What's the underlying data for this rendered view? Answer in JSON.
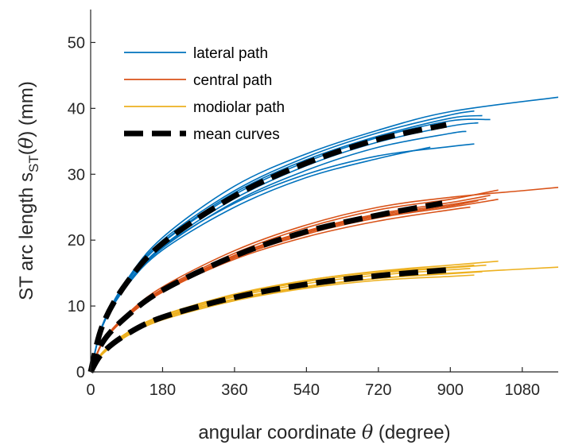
{
  "chart_data": {
    "type": "line",
    "xlabel": {
      "prefix": "angular coordinate ",
      "symbol": "θ",
      "suffix": " (degree)"
    },
    "ylabel": {
      "prefix": "ST arc length s",
      "subscript": "ST",
      "symbol_open": "(",
      "symbol": "θ",
      "suffix": ") (mm)"
    },
    "xlim": [
      0,
      1170
    ],
    "ylim": [
      0,
      55
    ],
    "xticks": [
      0,
      180,
      360,
      540,
      720,
      900,
      1080
    ],
    "yticks": [
      0,
      10,
      20,
      30,
      40,
      50
    ],
    "legend_position": "top-left",
    "legend": [
      {
        "label": "lateral path",
        "color": "#0072BD",
        "style": "solid"
      },
      {
        "label": "central path",
        "color": "#D95319",
        "style": "solid"
      },
      {
        "label": "modiolar path",
        "color": "#EDB120",
        "style": "solid"
      },
      {
        "label": "mean curves",
        "color": "#000000",
        "style": "dashed"
      }
    ],
    "groups": [
      {
        "name": "lateral path",
        "color": "#0072BD",
        "curves": [
          {
            "x": [
              0,
              30,
              90,
              180,
              360,
              540,
              720,
              900,
              1170
            ],
            "y": [
              0,
              7.1,
              13.9,
              20.4,
              28.2,
              33.1,
              36.7,
              39.5,
              41.7
            ]
          },
          {
            "x": [
              0,
              30,
              90,
              180,
              360,
              540,
              720,
              900,
              1000
            ],
            "y": [
              0,
              7.2,
              13.6,
              19.6,
              26.9,
              31.9,
              35.6,
              38.1,
              38.3
            ]
          },
          {
            "x": [
              0,
              30,
              90,
              180,
              360,
              540,
              720,
              900,
              980
            ],
            "y": [
              0,
              7.1,
              13.6,
              19.7,
              27.2,
              32.2,
              35.8,
              38.5,
              38.9
            ]
          },
          {
            "x": [
              0,
              30,
              90,
              180,
              360,
              540,
              720,
              900,
              960
            ],
            "y": [
              0,
              7.2,
              13.8,
              20.0,
              27.5,
              32.6,
              36.3,
              39.0,
              39.6
            ]
          },
          {
            "x": [
              0,
              30,
              90,
              180,
              360,
              540,
              720,
              900,
              970
            ],
            "y": [
              0,
              7.0,
              13.2,
              19.1,
              26.3,
              31.3,
              34.9,
              37.3,
              37.8
            ]
          },
          {
            "x": [
              0,
              30,
              90,
              180,
              360,
              540,
              720,
              900,
              940
            ],
            "y": [
              0,
              7.0,
              13.1,
              18.8,
              25.8,
              30.6,
              34.1,
              36.2,
              36.5
            ]
          },
          {
            "x": [
              0,
              30,
              90,
              180,
              360,
              540,
              720,
              900,
              960
            ],
            "y": [
              0,
              7.1,
              13.3,
              19.0,
              25.6,
              30.0,
              32.8,
              34.2,
              34.6
            ]
          },
          {
            "x": [
              0,
              30,
              90,
              180,
              360,
              540,
              720,
              850
            ],
            "y": [
              0,
              7.0,
              13.0,
              18.5,
              25.0,
              29.5,
              32.4,
              34.1
            ]
          }
        ],
        "mean": {
          "x": [
            0,
            30,
            90,
            180,
            360,
            540,
            720,
            890
          ],
          "y": [
            0,
            7.1,
            13.5,
            19.5,
            26.7,
            31.7,
            35.3,
            37.5
          ]
        }
      },
      {
        "name": "central path",
        "color": "#D95319",
        "curves": [
          {
            "x": [
              0,
              30,
              90,
              180,
              360,
              540,
              720,
              900,
              1080,
              1170
            ],
            "y": [
              0,
              4.6,
              8.7,
              12.9,
              18.4,
              22.3,
              25.0,
              26.5,
              27.5,
              28.0
            ]
          },
          {
            "x": [
              0,
              30,
              90,
              180,
              360,
              540,
              720,
              900,
              1020
            ],
            "y": [
              0,
              4.6,
              8.6,
              12.6,
              18.0,
              21.9,
              24.6,
              26.2,
              27.6
            ]
          },
          {
            "x": [
              0,
              30,
              90,
              180,
              360,
              540,
              720,
              900,
              1000
            ],
            "y": [
              0,
              4.5,
              8.5,
              12.4,
              17.7,
              21.4,
              24.0,
              25.7,
              26.8
            ]
          },
          {
            "x": [
              0,
              30,
              90,
              180,
              360,
              540,
              720,
              900,
              990
            ],
            "y": [
              0,
              4.5,
              8.4,
              12.3,
              17.6,
              21.3,
              23.8,
              25.4,
              26.3
            ]
          },
          {
            "x": [
              0,
              30,
              90,
              180,
              360,
              540,
              720,
              900,
              970
            ],
            "y": [
              0,
              4.4,
              8.3,
              12.2,
              17.4,
              21.1,
              23.6,
              25.2,
              26.0
            ]
          },
          {
            "x": [
              0,
              30,
              90,
              180,
              360,
              540,
              720,
              900,
              1020
            ],
            "y": [
              0,
              4.4,
              8.3,
              12.1,
              17.3,
              20.9,
              23.4,
              25.0,
              26.2
            ]
          },
          {
            "x": [
              0,
              30,
              90,
              180,
              360,
              540,
              720,
              900,
              950
            ],
            "y": [
              0,
              4.5,
              8.4,
              12.2,
              17.1,
              20.5,
              22.9,
              24.6,
              25.0
            ]
          }
        ],
        "mean": {
          "x": [
            0,
            30,
            90,
            180,
            360,
            540,
            720,
            880
          ],
          "y": [
            0,
            4.5,
            8.4,
            12.4,
            17.6,
            21.3,
            23.8,
            25.6
          ]
        }
      },
      {
        "name": "modiolar path",
        "color": "#EDB120",
        "curves": [
          {
            "x": [
              0,
              30,
              90,
              180,
              360,
              540,
              720,
              900,
              1170
            ],
            "y": [
              0,
              2.8,
              5.6,
              8.2,
              11.1,
              13.0,
              14.2,
              15.0,
              15.9
            ]
          },
          {
            "x": [
              0,
              30,
              90,
              180,
              360,
              540,
              720,
              900,
              1020
            ],
            "y": [
              0,
              3.0,
              5.9,
              8.6,
              11.7,
              13.9,
              15.3,
              16.2,
              16.8
            ]
          },
          {
            "x": [
              0,
              30,
              90,
              180,
              360,
              540,
              720,
              900,
              990
            ],
            "y": [
              0,
              2.9,
              5.8,
              8.5,
              11.6,
              13.7,
              15.0,
              15.8,
              16.2
            ]
          },
          {
            "x": [
              0,
              30,
              90,
              180,
              360,
              540,
              720,
              900,
              960
            ],
            "y": [
              0,
              3.0,
              5.9,
              8.6,
              11.8,
              13.9,
              15.2,
              15.9,
              16.2
            ]
          },
          {
            "x": [
              0,
              30,
              90,
              180,
              360,
              540,
              720,
              900,
              980
            ],
            "y": [
              0,
              2.8,
              5.6,
              8.1,
              11.0,
              12.9,
              14.2,
              14.9,
              15.2
            ]
          },
          {
            "x": [
              0,
              30,
              90,
              180,
              360,
              540,
              720,
              900,
              960
            ],
            "y": [
              0,
              2.7,
              5.4,
              7.9,
              10.8,
              12.7,
              13.9,
              14.5,
              14.7
            ]
          },
          {
            "x": [
              0,
              30,
              90,
              180,
              360,
              540,
              720,
              900,
              950
            ],
            "y": [
              0,
              2.9,
              5.7,
              8.3,
              11.4,
              13.4,
              14.7,
              15.5,
              15.7
            ]
          }
        ],
        "mean": {
          "x": [
            0,
            30,
            90,
            180,
            360,
            540,
            720,
            900
          ],
          "y": [
            0,
            2.9,
            5.7,
            8.3,
            11.3,
            13.3,
            14.6,
            15.5
          ]
        }
      }
    ]
  }
}
